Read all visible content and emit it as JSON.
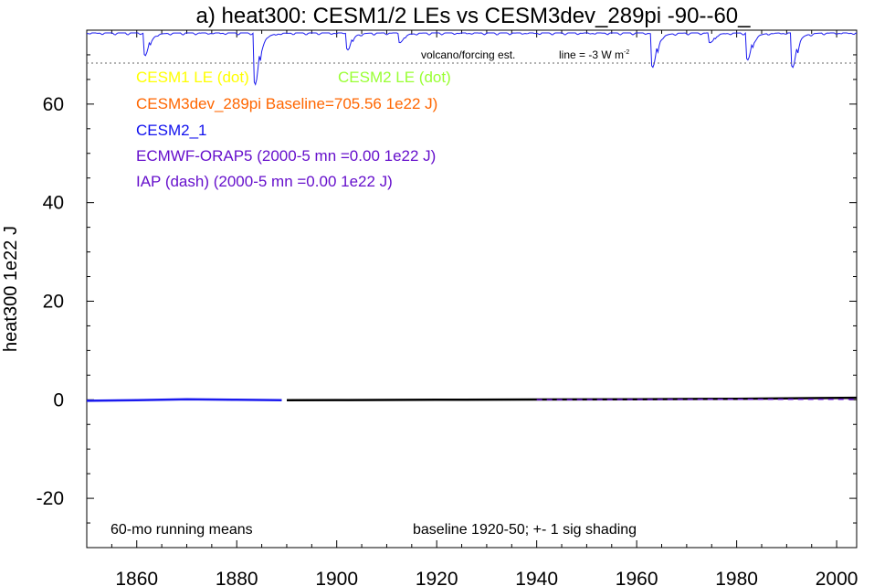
{
  "chart_data": {
    "type": "line",
    "title": "a) heat300: CESM1/2 LEs vs CESM3dev_289pi -90--60_",
    "ylabel": "heat300 1e22 J",
    "xlabel": "",
    "xlim": [
      1850,
      2004
    ],
    "ylim": [
      -30,
      75
    ],
    "x_ticks": [
      1860,
      1880,
      1900,
      1920,
      1940,
      1960,
      1980,
      2000
    ],
    "y_ticks": [
      -20,
      0,
      20,
      40,
      60
    ],
    "grid": false,
    "legend": [
      {
        "text": "CESM1 LE (dot)",
        "color": "#ffff00"
      },
      {
        "text": "CESM2 LE (dot)",
        "color": "#99ff33"
      },
      {
        "text": "CESM3dev_289pi Baseline=705.56 1e22 J)",
        "color": "#ff6600"
      },
      {
        "text": "CESM2_1",
        "color": "#1010ee"
      },
      {
        "text": "ECMWF-ORAP5 (2000-5 mn =0.00 1e22 J)",
        "color": "#6610cc"
      },
      {
        "text": "IAP (dash) (2000-5 mn =0.00 1e22 J)",
        "color": "#6610cc"
      }
    ],
    "annotations": {
      "running_means": "60-mo running means",
      "baseline": "baseline 1920-50; +- 1 sig shading",
      "volcano": "volcano/forcing est.",
      "scale": "line = -3 W m",
      "scale_superscript": "-2"
    },
    "volcano_baseline_y": 69,
    "volcano_forcing": [
      {
        "year": 1862,
        "depth": 4.5
      },
      {
        "year": 1884,
        "depth": 10.5
      },
      {
        "year": 1902.5,
        "depth": 3.2
      },
      {
        "year": 1913,
        "depth": 1.8
      },
      {
        "year": 1963.5,
        "depth": 7.0
      },
      {
        "year": 1975,
        "depth": 2.0
      },
      {
        "year": 1982.5,
        "depth": 5.5
      },
      {
        "year": 1991.5,
        "depth": 7.0
      }
    ],
    "series": [
      {
        "name": "CESM3dev_289pi",
        "color": "#000000",
        "width": 2.5,
        "x": [
          1890,
          1900,
          1920,
          1940,
          1960,
          1980,
          1990,
          2004
        ],
        "y": [
          -0.1,
          -0.05,
          0.0,
          0.05,
          0.1,
          0.2,
          0.3,
          0.4
        ]
      },
      {
        "name": "CESM2_1",
        "color": "#1a1aee",
        "width": 2.5,
        "x": [
          1850,
          1860,
          1870,
          1880,
          1889
        ],
        "y": [
          -0.2,
          -0.1,
          0.1,
          0.0,
          -0.1
        ]
      },
      {
        "name": "ECMWF-ORAP5",
        "color": "#6610cc",
        "width": 1.5,
        "x": [
          1940,
          1960,
          1980,
          2004
        ],
        "y": [
          0.0,
          0.05,
          0.1,
          0.1
        ]
      }
    ]
  }
}
